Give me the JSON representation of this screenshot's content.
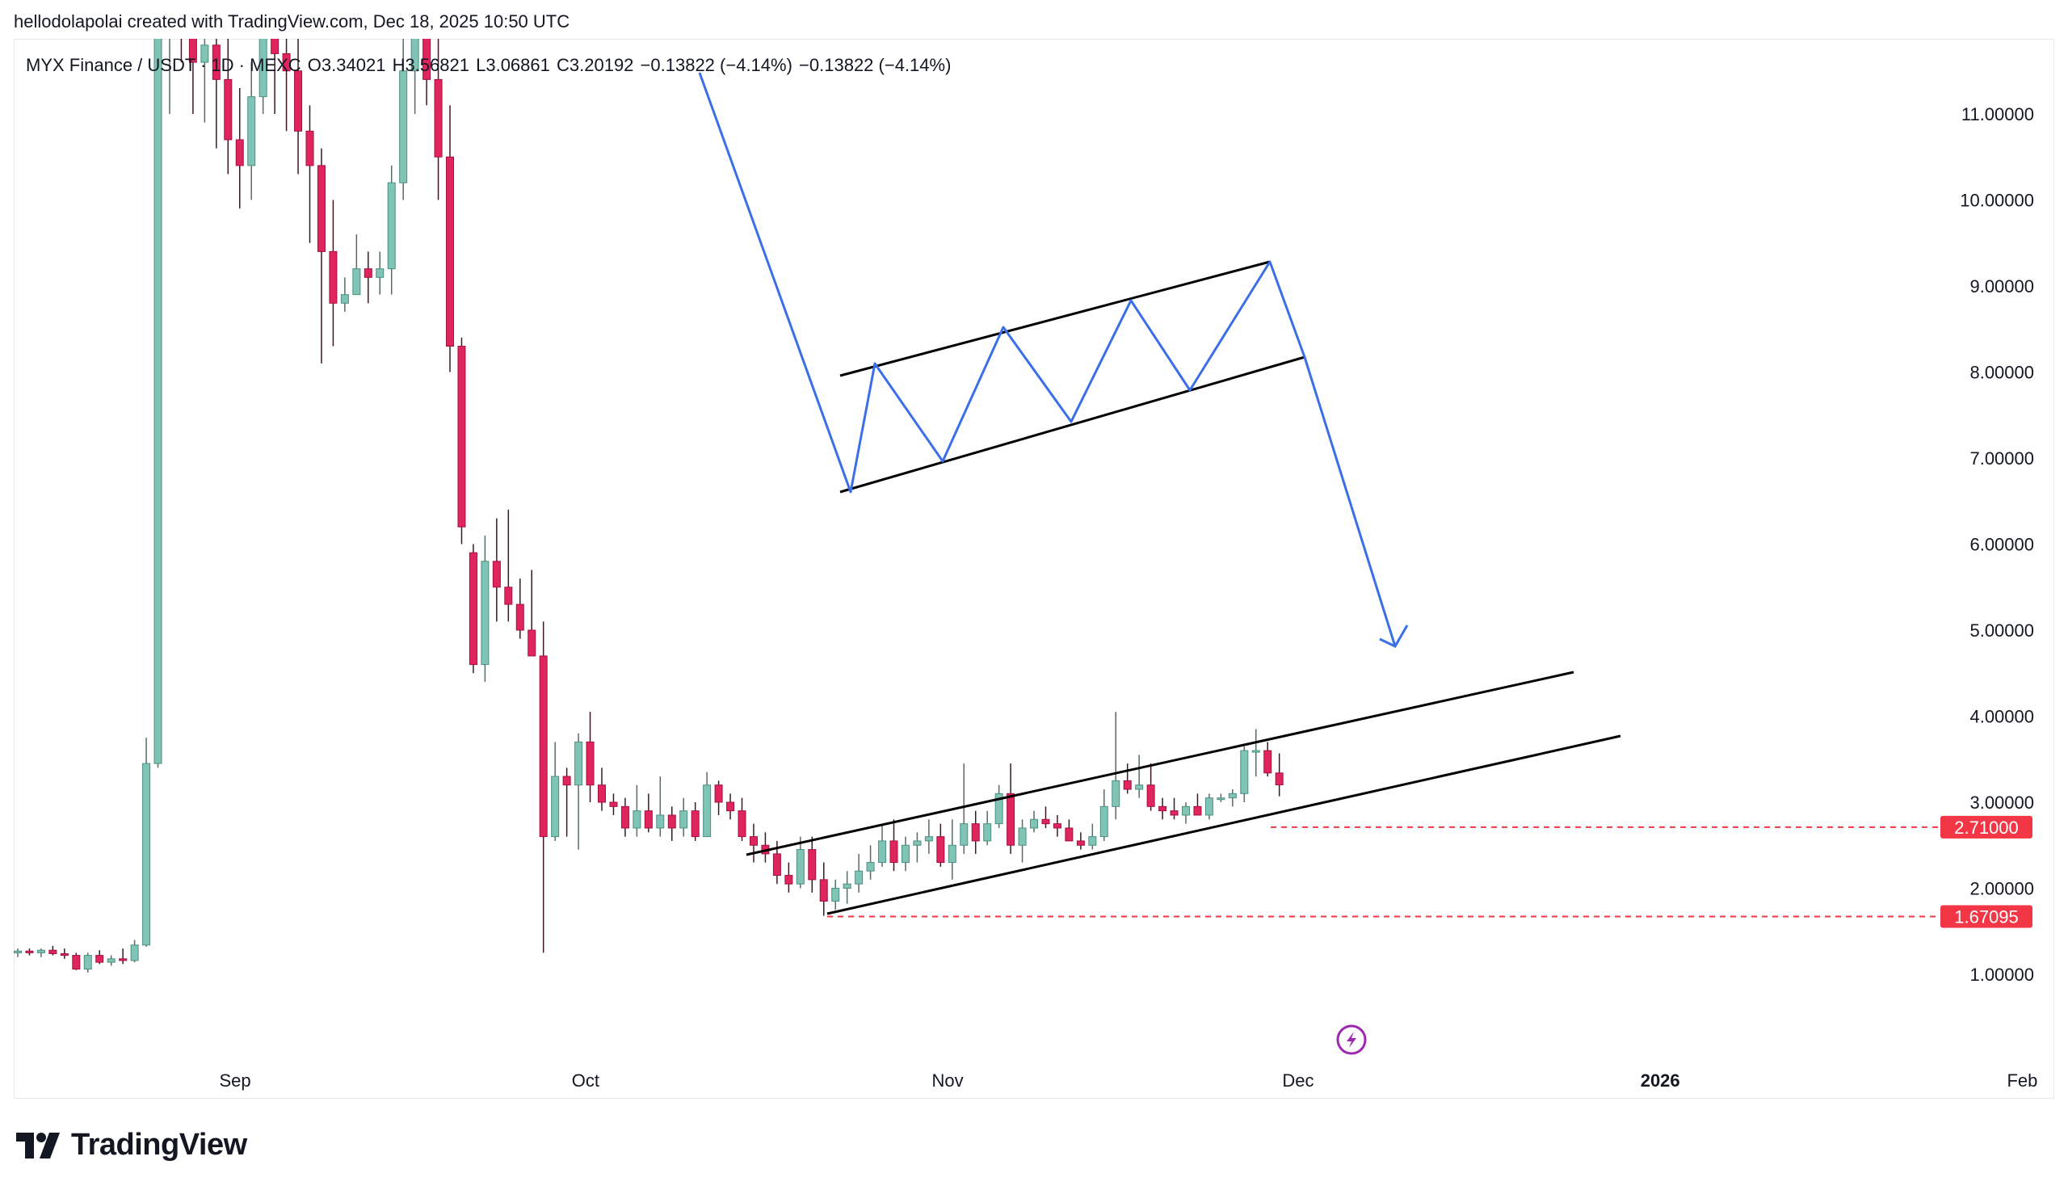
{
  "header": {
    "attribution": "hellodolapolai created with TradingView.com, Dec 18, 2025 10:50 UTC"
  },
  "legend": {
    "symbol": "MYX Finance / USDT · 1D · MEXC",
    "open": "O3.34021",
    "high": "H3.56821",
    "low": "L3.06861",
    "close": "C3.20192",
    "change": "−0.13822 (−4.14%)",
    "change2": "−0.13822 (−4.14%)"
  },
  "footer": {
    "brand": "TradingView"
  },
  "colors": {
    "up": "#7fc4b5",
    "down": "#e0245e",
    "arrow": "#3b6fe8",
    "trendline": "#000000",
    "level": "#f23645"
  },
  "chart_data": {
    "type": "candlestick",
    "price_axis": {
      "ticks": [
        "11.00000",
        "10.00000",
        "9.00000",
        "8.00000",
        "7.00000",
        "6.00000",
        "5.00000",
        "4.00000",
        "3.00000",
        "2.00000",
        "1.00000"
      ],
      "range": [
        0,
        11.8
      ]
    },
    "time_axis": {
      "labels": [
        "Sep",
        "Oct",
        "Nov",
        "Dec",
        "2026",
        "Feb"
      ],
      "bold": [
        "2026"
      ]
    },
    "start_date": "2025-08-21",
    "candles": [
      [
        1.25,
        1.3,
        1.2,
        1.27
      ],
      [
        1.27,
        1.3,
        1.22,
        1.25
      ],
      [
        1.25,
        1.3,
        1.2,
        1.28
      ],
      [
        1.28,
        1.33,
        1.22,
        1.24
      ],
      [
        1.24,
        1.3,
        1.18,
        1.22
      ],
      [
        1.22,
        1.25,
        1.05,
        1.06
      ],
      [
        1.06,
        1.25,
        1.02,
        1.22
      ],
      [
        1.22,
        1.28,
        1.12,
        1.14
      ],
      [
        1.14,
        1.22,
        1.1,
        1.18
      ],
      [
        1.18,
        1.3,
        1.12,
        1.16
      ],
      [
        1.16,
        1.4,
        1.14,
        1.34
      ],
      [
        1.34,
        3.75,
        1.32,
        3.45
      ],
      [
        3.45,
        12.0,
        3.4,
        11.9
      ],
      [
        11.9,
        13.0,
        11.0,
        12.5
      ],
      [
        12.5,
        13.2,
        11.6,
        12.0
      ],
      [
        12.0,
        12.8,
        11.0,
        11.6
      ],
      [
        11.6,
        12.3,
        10.9,
        11.8
      ],
      [
        11.8,
        12.4,
        10.6,
        11.4
      ],
      [
        11.4,
        12.1,
        10.3,
        10.7
      ],
      [
        10.7,
        11.3,
        9.9,
        10.4
      ],
      [
        10.4,
        11.6,
        10.0,
        11.2
      ],
      [
        11.2,
        12.4,
        11.0,
        12.0
      ],
      [
        12.0,
        12.8,
        11.0,
        11.7
      ],
      [
        11.7,
        12.6,
        10.8,
        11.5
      ],
      [
        11.5,
        12.1,
        10.3,
        10.8
      ],
      [
        10.8,
        11.1,
        9.5,
        10.4
      ],
      [
        10.4,
        10.6,
        8.1,
        9.4
      ],
      [
        9.4,
        10.0,
        8.3,
        8.8
      ],
      [
        8.8,
        9.1,
        8.7,
        8.9
      ],
      [
        8.9,
        9.6,
        8.9,
        9.2
      ],
      [
        9.2,
        9.4,
        8.8,
        9.1
      ],
      [
        9.1,
        9.4,
        8.9,
        9.2
      ],
      [
        9.2,
        10.4,
        8.9,
        10.2
      ],
      [
        10.2,
        12.0,
        10.0,
        11.5
      ],
      [
        11.5,
        12.4,
        11.0,
        12.0
      ],
      [
        12.0,
        12.7,
        11.1,
        11.4
      ],
      [
        11.4,
        11.9,
        10.0,
        10.5
      ],
      [
        10.5,
        11.1,
        8.0,
        8.3
      ],
      [
        8.3,
        8.4,
        6.0,
        6.2
      ],
      [
        5.9,
        6.0,
        4.5,
        4.6
      ],
      [
        4.6,
        6.1,
        4.4,
        5.8
      ],
      [
        5.8,
        6.3,
        5.1,
        5.5
      ],
      [
        5.5,
        6.4,
        5.1,
        5.3
      ],
      [
        5.3,
        5.6,
        4.9,
        5.0
      ],
      [
        5.0,
        5.7,
        4.8,
        4.7
      ],
      [
        4.7,
        5.1,
        1.25,
        2.6
      ],
      [
        2.6,
        3.7,
        2.55,
        3.3
      ],
      [
        3.3,
        3.4,
        2.6,
        3.2
      ],
      [
        3.2,
        3.8,
        2.45,
        3.7
      ],
      [
        3.7,
        4.05,
        3.0,
        3.2
      ],
      [
        3.2,
        3.4,
        2.9,
        3.0
      ],
      [
        3.0,
        3.1,
        2.85,
        2.95
      ],
      [
        2.95,
        3.05,
        2.6,
        2.7
      ],
      [
        2.7,
        3.2,
        2.6,
        2.9
      ],
      [
        2.9,
        3.1,
        2.65,
        2.7
      ],
      [
        2.7,
        3.3,
        2.6,
        2.85
      ],
      [
        2.85,
        2.95,
        2.55,
        2.7
      ],
      [
        2.7,
        3.05,
        2.6,
        2.9
      ],
      [
        2.9,
        3.0,
        2.55,
        2.6
      ],
      [
        2.6,
        3.35,
        2.6,
        3.2
      ],
      [
        3.2,
        3.25,
        2.85,
        3.0
      ],
      [
        3.0,
        3.1,
        2.8,
        2.9
      ],
      [
        2.9,
        3.05,
        2.55,
        2.6
      ],
      [
        2.6,
        2.75,
        2.3,
        2.5
      ],
      [
        2.5,
        2.65,
        2.3,
        2.4
      ],
      [
        2.4,
        2.55,
        2.05,
        2.15
      ],
      [
        2.15,
        2.3,
        1.95,
        2.05
      ],
      [
        2.05,
        2.6,
        2.0,
        2.45
      ],
      [
        2.45,
        2.6,
        1.95,
        2.1
      ],
      [
        2.1,
        2.3,
        1.68,
        1.85
      ],
      [
        1.85,
        2.1,
        1.75,
        2.0
      ],
      [
        2.0,
        2.2,
        1.82,
        2.05
      ],
      [
        2.05,
        2.4,
        1.95,
        2.2
      ],
      [
        2.2,
        2.5,
        2.1,
        2.3
      ],
      [
        2.3,
        2.75,
        2.25,
        2.55
      ],
      [
        2.55,
        2.8,
        2.2,
        2.3
      ],
      [
        2.3,
        2.6,
        2.2,
        2.5
      ],
      [
        2.5,
        2.65,
        2.3,
        2.55
      ],
      [
        2.55,
        2.8,
        2.4,
        2.6
      ],
      [
        2.6,
        2.75,
        2.25,
        2.3
      ],
      [
        2.3,
        2.8,
        2.1,
        2.5
      ],
      [
        2.5,
        3.45,
        2.4,
        2.75
      ],
      [
        2.75,
        2.9,
        2.4,
        2.55
      ],
      [
        2.55,
        2.9,
        2.5,
        2.75
      ],
      [
        2.75,
        3.2,
        2.7,
        3.1
      ],
      [
        3.1,
        3.45,
        2.4,
        2.5
      ],
      [
        2.5,
        2.8,
        2.3,
        2.7
      ],
      [
        2.7,
        2.9,
        2.65,
        2.8
      ],
      [
        2.8,
        2.95,
        2.7,
        2.75
      ],
      [
        2.75,
        2.85,
        2.6,
        2.7
      ],
      [
        2.7,
        2.8,
        2.55,
        2.55
      ],
      [
        2.55,
        2.65,
        2.45,
        2.5
      ],
      [
        2.5,
        2.75,
        2.45,
        2.6
      ],
      [
        2.6,
        3.15,
        2.55,
        2.95
      ],
      [
        2.95,
        4.05,
        2.8,
        3.25
      ],
      [
        3.25,
        3.45,
        3.1,
        3.15
      ],
      [
        3.15,
        3.55,
        3.05,
        3.2
      ],
      [
        3.2,
        3.45,
        2.9,
        2.95
      ],
      [
        2.95,
        3.05,
        2.8,
        2.9
      ],
      [
        2.9,
        3.05,
        2.8,
        2.85
      ],
      [
        2.85,
        3.0,
        2.75,
        2.95
      ],
      [
        2.95,
        3.1,
        2.85,
        2.85
      ],
      [
        2.85,
        3.1,
        2.8,
        3.05
      ],
      [
        3.05,
        3.1,
        3.0,
        3.05
      ],
      [
        3.05,
        3.15,
        2.95,
        3.1
      ],
      [
        3.1,
        3.65,
        3.0,
        3.6
      ],
      [
        3.6,
        3.85,
        3.3,
        3.6
      ],
      [
        3.6,
        3.7,
        3.3,
        3.34
      ],
      [
        3.34021,
        3.56821,
        3.06861,
        3.20192
      ]
    ],
    "annotations": {
      "levels": [
        2.71,
        1.67095
      ],
      "level_labels": [
        "2.71000",
        "1.67095"
      ]
    }
  }
}
